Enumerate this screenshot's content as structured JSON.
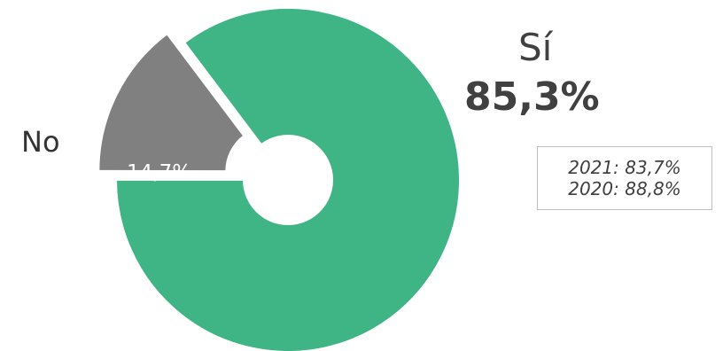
{
  "chart_data": {
    "type": "pie",
    "donut": true,
    "title": "",
    "series": [
      {
        "name": "Sí",
        "value": 85.3,
        "value_label": "85,3%",
        "color": "#3fb585"
      },
      {
        "name": "No",
        "value": 14.7,
        "value_label": "14,7%",
        "color": "#808080",
        "exploded": true
      }
    ],
    "comparison": [
      "2021: 83,7%",
      "2020: 88,8%"
    ]
  }
}
